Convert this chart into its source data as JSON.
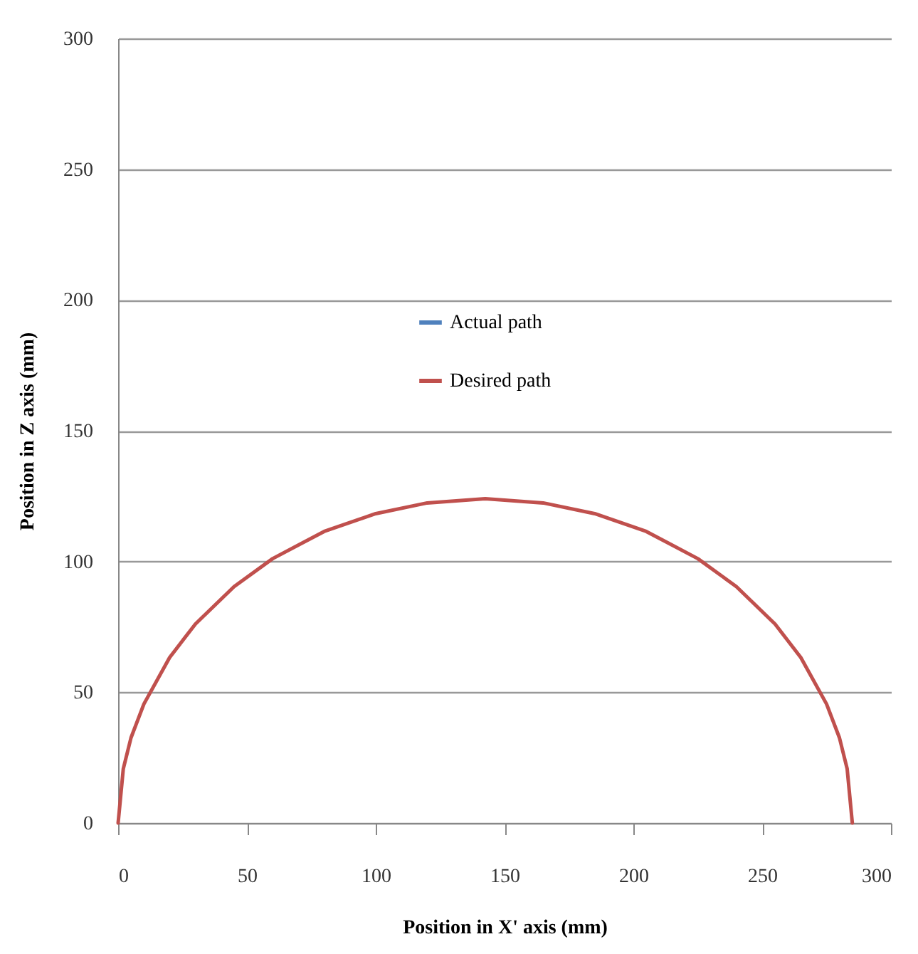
{
  "chart_data": {
    "type": "line",
    "xlabel": "Position in X' axis (mm)",
    "ylabel": "Position in Z axis (mm)",
    "x": [
      0,
      2,
      5,
      10,
      20,
      30,
      45,
      60,
      80,
      100,
      120,
      142.5,
      165,
      185,
      205,
      225,
      240,
      255,
      265,
      275,
      280,
      283,
      285
    ],
    "series": [
      {
        "name": "Actual path",
        "color": "#4f81bd",
        "values": [
          null,
          null,
          null,
          null,
          null,
          null,
          null,
          null,
          null,
          null,
          null,
          null,
          null,
          null,
          null,
          null,
          null,
          null,
          null,
          null,
          null,
          null,
          null
        ]
      },
      {
        "name": "Desired path",
        "color": "#c0504d",
        "values": [
          0,
          20.7,
          32.6,
          45.5,
          63.3,
          76.1,
          90.4,
          101.1,
          111.5,
          118.3,
          122.4,
          124,
          122.4,
          118.3,
          111.5,
          101.1,
          90.4,
          76.1,
          63.3,
          45.5,
          32.6,
          20.7,
          0
        ]
      }
    ],
    "xlim": [
      0,
      300
    ],
    "xticks": [
      0,
      50,
      100,
      150,
      200,
      250,
      300
    ],
    "ylim": [
      0,
      300
    ],
    "yticks": [
      0,
      50,
      100,
      150,
      200,
      250,
      300
    ],
    "grid": "y",
    "legend": "top",
    "marker": "none",
    "line_style": "solid"
  }
}
